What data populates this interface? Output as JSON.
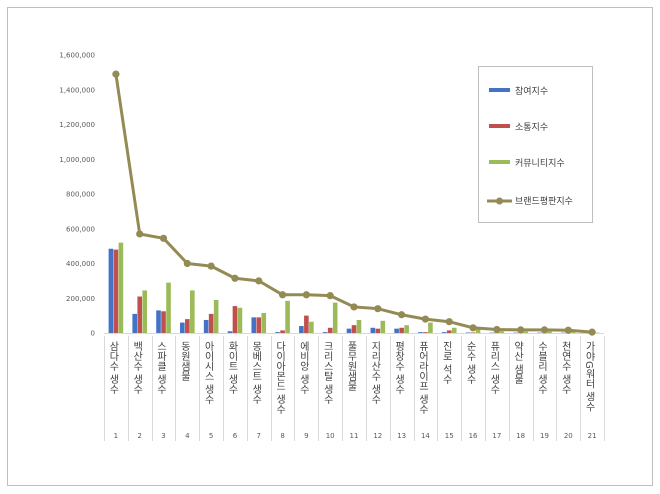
{
  "chart_data": {
    "type": "bar",
    "y_ticks": [
      "0",
      "200,000",
      "400,000",
      "600,000",
      "800,000",
      "1,000,000",
      "1,200,000",
      "1,400,000",
      "1,600,000"
    ],
    "ylim": [
      0,
      1600000
    ],
    "legend_position": "right",
    "categories": [
      {
        "index": "1",
        "name": "삼다수 생수"
      },
      {
        "index": "2",
        "name": "백산수 생수"
      },
      {
        "index": "3",
        "name": "스파클 생수"
      },
      {
        "index": "4",
        "name": "동원샘물"
      },
      {
        "index": "5",
        "name": "아이시스 생수"
      },
      {
        "index": "6",
        "name": "화이트 생수"
      },
      {
        "index": "7",
        "name": "몽베스트 생수"
      },
      {
        "index": "8",
        "name": "다이아몬드 생수"
      },
      {
        "index": "9",
        "name": "에비앙 생수"
      },
      {
        "index": "10",
        "name": "크리스탈 생수"
      },
      {
        "index": "11",
        "name": "풀무원샘물"
      },
      {
        "index": "12",
        "name": "지리산수 생수"
      },
      {
        "index": "13",
        "name": "평창수 생수"
      },
      {
        "index": "14",
        "name": "퓨어라이프 생수"
      },
      {
        "index": "15",
        "name": "진로 석수"
      },
      {
        "index": "16",
        "name": "순수 생수"
      },
      {
        "index": "17",
        "name": "퓨리스 생수"
      },
      {
        "index": "18",
        "name": "약산 샘물"
      },
      {
        "index": "19",
        "name": "수블리 생수"
      },
      {
        "index": "20",
        "name": "천연수 생수"
      },
      {
        "index": "21",
        "name": "가야G워터 생수"
      }
    ],
    "series": [
      {
        "name": "참여지수",
        "kind": "bar",
        "color": "#4472c4",
        "values": [
          485000,
          110000,
          130000,
          60000,
          75000,
          10000,
          90000,
          5000,
          40000,
          5000,
          25000,
          30000,
          25000,
          5000,
          5000,
          3000,
          2000,
          2000,
          2000,
          2000,
          1000
        ]
      },
      {
        "name": "소통지수",
        "kind": "bar",
        "color": "#c0504d",
        "values": [
          480000,
          210000,
          125000,
          80000,
          110000,
          155000,
          90000,
          15000,
          100000,
          30000,
          45000,
          25000,
          30000,
          5000,
          15000,
          3000,
          2000,
          2000,
          2000,
          2000,
          1000
        ]
      },
      {
        "name": "커뮤니티지수",
        "kind": "bar",
        "color": "#9bbb59",
        "values": [
          520000,
          245000,
          290000,
          245000,
          190000,
          145000,
          115000,
          185000,
          65000,
          175000,
          75000,
          70000,
          45000,
          60000,
          30000,
          20000,
          10000,
          8000,
          8000,
          5000,
          2000
        ]
      },
      {
        "name": "브랜드평판지수",
        "kind": "line",
        "color": "#948a54",
        "values": [
          1490000,
          570000,
          545000,
          400000,
          385000,
          315000,
          300000,
          220000,
          220000,
          215000,
          150000,
          140000,
          105000,
          80000,
          65000,
          30000,
          20000,
          18000,
          18000,
          16000,
          5000
        ]
      }
    ]
  }
}
